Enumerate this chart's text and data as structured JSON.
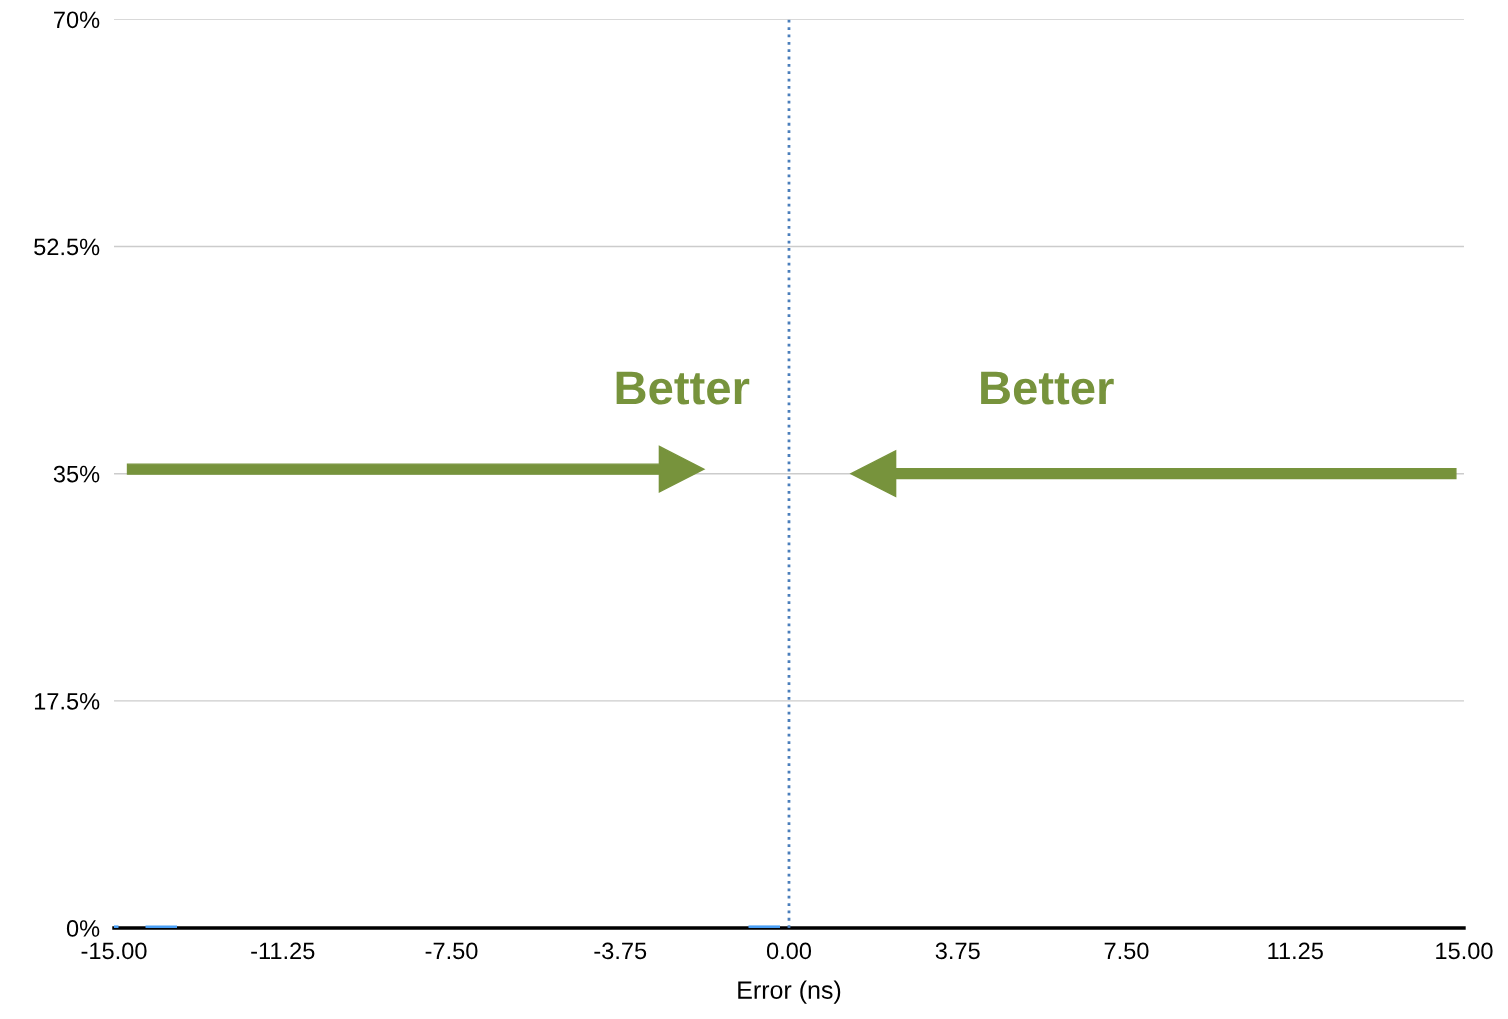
{
  "chart_data": {
    "type": "histogram",
    "xlabel": "Error (ns)",
    "bins": [
      -15.0,
      -14.9,
      -14.3,
      -13.6,
      -0.9,
      -0.2
    ],
    "values": [
      0.2,
      0,
      0.2,
      0,
      0.2
    ],
    "color": "#4a9ff5",
    "xlim": [
      -15,
      15
    ],
    "xticks": [
      {
        "value": -15,
        "label": "-15.00"
      },
      {
        "value": -11.25,
        "label": "-11.25"
      },
      {
        "value": -7.5,
        "label": "-7.50"
      },
      {
        "value": -3.75,
        "label": "-3.75"
      },
      {
        "value": 0,
        "label": "0.00"
      },
      {
        "value": 3.75,
        "label": "3.75"
      },
      {
        "value": 7.5,
        "label": "7.50"
      },
      {
        "value": 11.25,
        "label": "11.25"
      },
      {
        "value": 15,
        "label": "15.00"
      }
    ],
    "ylim": [
      0,
      70
    ],
    "yticks": [
      {
        "value": 0,
        "label": "0%"
      },
      {
        "value": 17.5,
        "label": "17.5%"
      },
      {
        "value": 35,
        "label": "35%"
      },
      {
        "value": 52.5,
        "label": "52.5%"
      },
      {
        "value": 70,
        "label": "70%"
      }
    ],
    "grid": "y",
    "ref_lines": [
      {
        "axis": "x",
        "value": 0,
        "color": "#4a7ebb",
        "line_style": "dotted"
      }
    ],
    "annotations": [
      "Better",
      "Better"
    ]
  }
}
